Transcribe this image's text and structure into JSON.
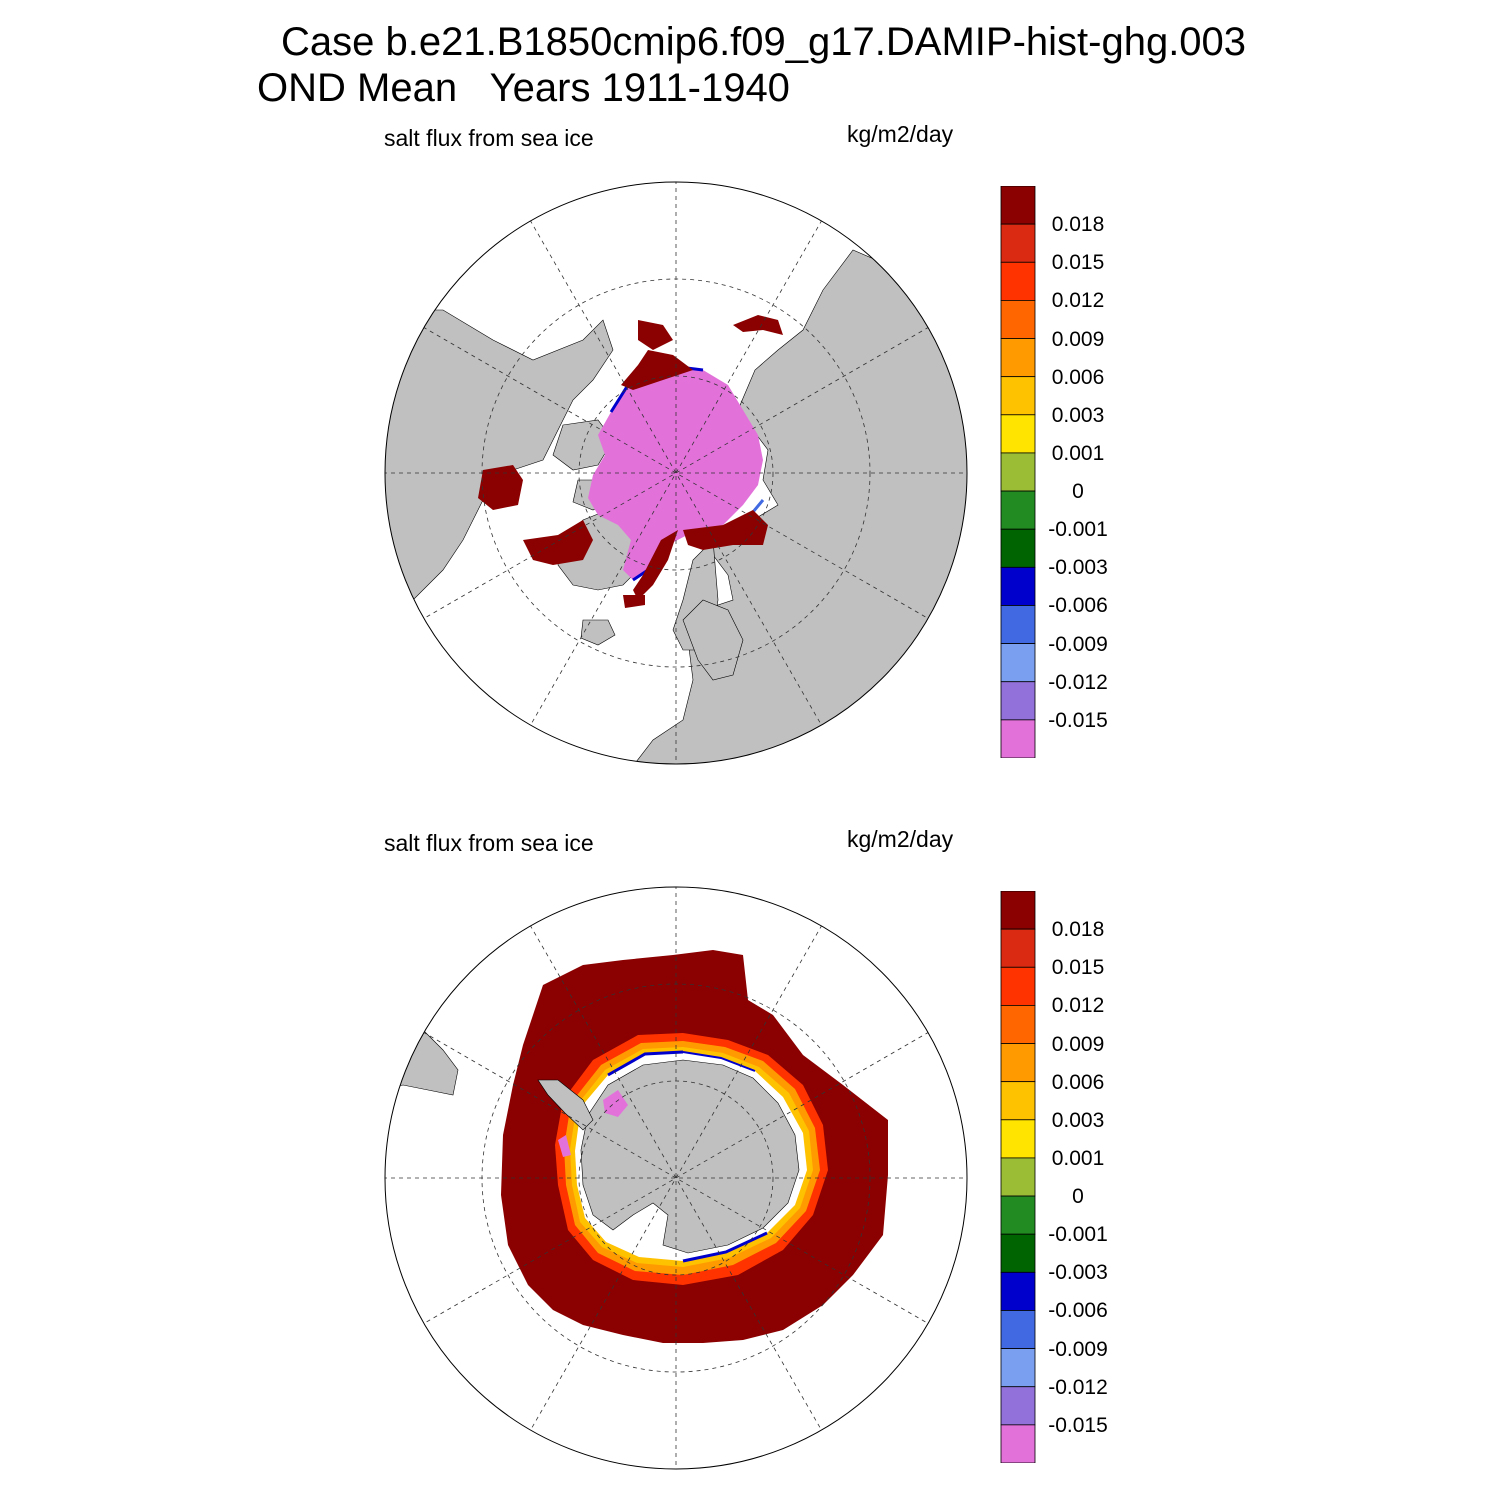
{
  "title": {
    "line1": "Case b.e21.B1850cmip6.f09_g17.DAMIP-hist-ghg.003",
    "line2": "OND Mean   Years 1911-1940"
  },
  "colors": {
    "land": "#c0c0c0",
    "levels": [
      "#e272da",
      "#9371db",
      "#7b9ff0",
      "#4169e1",
      "#0000cd",
      "#006400",
      "#228b22",
      "#9bbd35",
      "#ffe400",
      "#ffc200",
      "#ff9b00",
      "#ff6600",
      "#ff3300",
      "#db2a12",
      "#8b0000"
    ]
  },
  "panels": [
    {
      "left_label": "salt flux from sea ice",
      "right_label": "kg/m2/day",
      "hemisphere": "north",
      "colorbar_labels": [
        "0.018",
        "0.015",
        "0.012",
        "0.009",
        "0.006",
        "0.003",
        "0.001",
        "0",
        "-0.001",
        "-0.003",
        "-0.006",
        "-0.009",
        "-0.012",
        "-0.015"
      ]
    },
    {
      "left_label": "salt flux from sea ice",
      "right_label": "kg/m2/day",
      "hemisphere": "south",
      "colorbar_labels": [
        "0.018",
        "0.015",
        "0.012",
        "0.009",
        "0.006",
        "0.003",
        "0.001",
        "0",
        "-0.001",
        "-0.003",
        "-0.006",
        "-0.009",
        "-0.012",
        "-0.015"
      ]
    }
  ]
}
